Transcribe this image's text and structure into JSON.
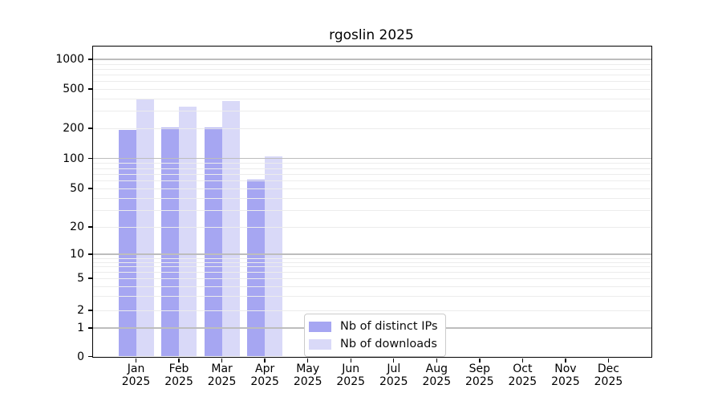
{
  "chart_data": {
    "type": "bar",
    "title": "rgoslin 2025",
    "categories": [
      "Jan",
      "Feb",
      "Mar",
      "Apr",
      "May",
      "Jun",
      "Jul",
      "Aug",
      "Sep",
      "Oct",
      "Nov",
      "Dec"
    ],
    "x_tick_year": "2025",
    "series": [
      {
        "name": "Nb of distinct IPs",
        "color": "#a6a6f2",
        "values": [
          193,
          205,
          205,
          61,
          0,
          0,
          0,
          0,
          0,
          0,
          0,
          0
        ]
      },
      {
        "name": "Nb of downloads",
        "color": "#d9d9f8",
        "values": [
          390,
          330,
          377,
          104,
          0,
          0,
          0,
          0,
          0,
          0,
          0,
          0
        ]
      }
    ],
    "y_ticks": [
      {
        "label": "0",
        "value": 0
      },
      {
        "label": "1",
        "value": 1
      },
      {
        "label": "2",
        "value": 2
      },
      {
        "label": "5",
        "value": 5
      },
      {
        "label": "10",
        "value": 10
      },
      {
        "label": "20",
        "value": 20
      },
      {
        "label": "50",
        "value": 50
      },
      {
        "label": "100",
        "value": 100
      },
      {
        "label": "200",
        "value": 200
      },
      {
        "label": "500",
        "value": 500
      },
      {
        "label": "1000",
        "value": 1000
      }
    ],
    "xlabel": "",
    "ylabel": "",
    "ylim": [
      0,
      1350
    ],
    "y_scale": "log-like with linear zero segment",
    "grid": "horizontal major (decades) + minor (log subdivisions), drawn over bars",
    "legend_position": "inside plot, lower center-left"
  }
}
